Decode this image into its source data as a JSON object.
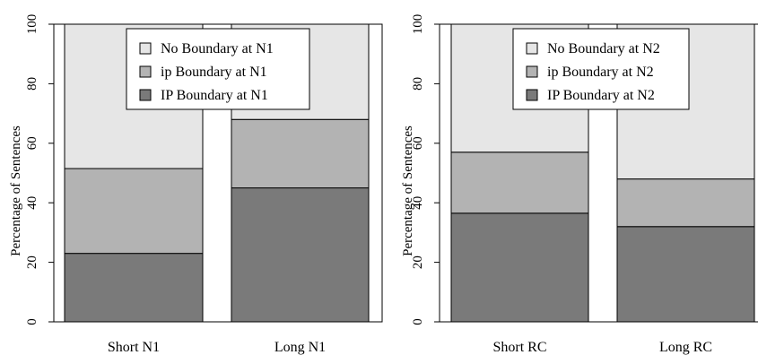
{
  "colors": {
    "no_boundary": "#e6e6e6",
    "ip_small": "#b3b3b3",
    "ip_big": "#7a7a7a",
    "stroke": "#000000",
    "background": "#ffffff"
  },
  "chart_data": [
    {
      "type": "bar",
      "stacked": true,
      "title": "",
      "xlabel": "",
      "ylabel": "Percentage of Sentences",
      "ylim": [
        0,
        100
      ],
      "yticks": [
        0,
        20,
        40,
        60,
        80,
        100
      ],
      "categories": [
        "Short N1",
        "Long N1"
      ],
      "series": [
        {
          "name": "IP Boundary at N1",
          "color_key": "ip_big",
          "values": [
            23,
            45
          ]
        },
        {
          "name": "ip Boundary at N1",
          "color_key": "ip_small",
          "values": [
            28.5,
            23
          ]
        },
        {
          "name": "No Boundary at N1",
          "color_key": "no_boundary",
          "values": [
            48.5,
            32
          ]
        }
      ],
      "legend": {
        "position": "top-center",
        "order": [
          "No Boundary at N1",
          "ip Boundary at N1",
          "IP Boundary at N1"
        ]
      },
      "grid": false
    },
    {
      "type": "bar",
      "stacked": true,
      "title": "",
      "xlabel": "",
      "ylabel": "Percentage of Sentences",
      "ylim": [
        0,
        100
      ],
      "yticks": [
        0,
        20,
        40,
        60,
        80,
        100
      ],
      "categories": [
        "Short RC",
        "Long RC"
      ],
      "series": [
        {
          "name": "IP Boundary at N2",
          "color_key": "ip_big",
          "values": [
            36.5,
            32
          ]
        },
        {
          "name": "ip Boundary at N2",
          "color_key": "ip_small",
          "values": [
            20.5,
            16
          ]
        },
        {
          "name": "No Boundary at N2",
          "color_key": "no_boundary",
          "values": [
            43,
            52
          ]
        }
      ],
      "legend": {
        "position": "top-center",
        "order": [
          "No Boundary at N2",
          "ip Boundary at N2",
          "IP Boundary at N2"
        ]
      },
      "grid": false
    }
  ]
}
